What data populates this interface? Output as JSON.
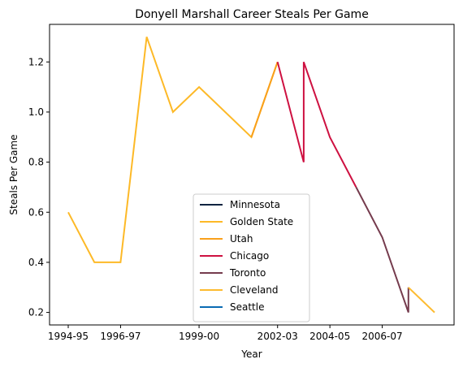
{
  "chart_data": {
    "type": "line",
    "title": "Donyell Marshall Career Steals Per Game",
    "xlabel": "Year",
    "ylabel": "Steals Per Game",
    "x_ticks": [
      "1994-95",
      "1996-97",
      "1999-00",
      "2002-03",
      "2004-05",
      "2006-07"
    ],
    "y_ticks": [
      "0.2",
      "0.4",
      "0.6",
      "0.8",
      "1.0",
      "1.2"
    ],
    "legend_position": "lower center",
    "grid": false,
    "series": [
      {
        "name": "Minnesota",
        "color": "#0c2340",
        "points": []
      },
      {
        "name": "Golden State",
        "color": "#fdb927",
        "points": [
          [
            "1994-95",
            0.6
          ],
          [
            "1995-96",
            0.4
          ],
          [
            "1996-97",
            0.4
          ],
          [
            "1997-98",
            1.3
          ],
          [
            "1998-99",
            1.0
          ],
          [
            "1999-00",
            1.1
          ],
          [
            "2001-02",
            0.9
          ],
          [
            "2002-03",
            1.2
          ]
        ]
      },
      {
        "name": "Utah",
        "color": "#f9a01b",
        "points": [
          [
            "2001-02",
            0.9
          ],
          [
            "2002-03",
            1.2
          ]
        ]
      },
      {
        "name": "Chicago",
        "color": "#ce1141",
        "points": [
          [
            "2002-03",
            1.2
          ],
          [
            "2003-04",
            0.8
          ],
          [
            "2003-04",
            1.2
          ],
          [
            "2004-05",
            0.9
          ],
          [
            "2005-06",
            0.7
          ]
        ]
      },
      {
        "name": "Toronto",
        "color": "#753b4d",
        "points": [
          [
            "2005-06",
            0.7
          ],
          [
            "2006-07",
            0.5
          ],
          [
            "2007-08",
            0.2
          ],
          [
            "2007-08",
            0.3
          ]
        ]
      },
      {
        "name": "Cleveland",
        "color": "#fdbb30",
        "points": [
          [
            "2007-08",
            0.3
          ],
          [
            "2008-09",
            0.2
          ]
        ]
      },
      {
        "name": "Seattle",
        "color": "#0a6bb3",
        "points": []
      }
    ]
  }
}
